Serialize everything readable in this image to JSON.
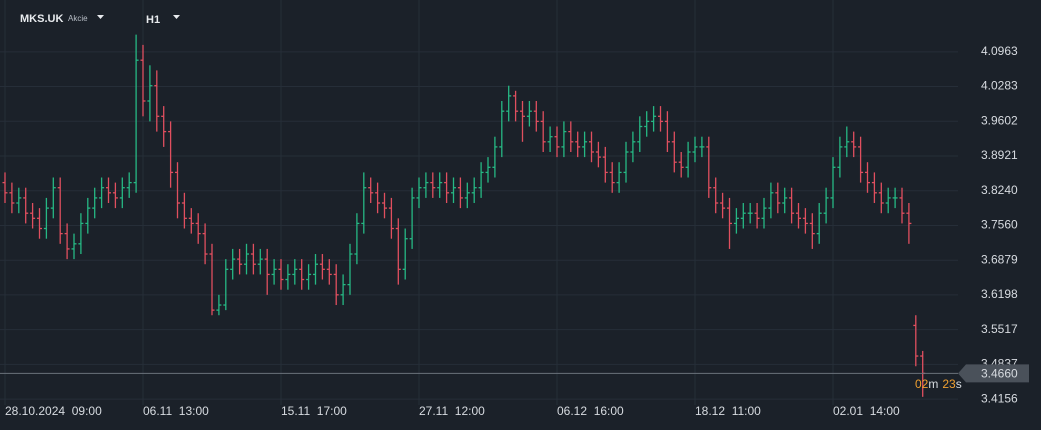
{
  "header": {
    "symbol": "MKS.UK",
    "asset_type": "Akcie",
    "timeframe": "H1"
  },
  "chart_data": {
    "type": "ohlc",
    "grid": true,
    "up_color": "#26b884",
    "down_color": "#e04f5f",
    "ylim": [
      3.404,
      4.198
    ],
    "yticks": [
      3.4156,
      3.4837,
      3.5517,
      3.6198,
      3.6879,
      {
        "value": 3.756,
        "label": "3.7560"
      },
      {
        "value": 3.824,
        "label": "3.8240"
      },
      3.8921,
      3.9602,
      4.0283,
      4.0963
    ],
    "categories": [
      "28.10.2024  09:00",
      null,
      null,
      null,
      null,
      null,
      null,
      null,
      null,
      null,
      null,
      null,
      null,
      null,
      null,
      null,
      null,
      null,
      null,
      null,
      "06.11  13:00",
      null,
      null,
      null,
      null,
      null,
      null,
      null,
      null,
      null,
      null,
      null,
      null,
      null,
      null,
      null,
      null,
      null,
      null,
      null,
      "15.11  17:00",
      null,
      null,
      null,
      null,
      null,
      null,
      null,
      null,
      null,
      null,
      null,
      null,
      null,
      null,
      null,
      null,
      null,
      null,
      null,
      "27.11  12:00",
      null,
      null,
      null,
      null,
      null,
      null,
      null,
      null,
      null,
      null,
      null,
      null,
      null,
      null,
      null,
      null,
      null,
      null,
      null,
      "06.12  16:00",
      null,
      null,
      null,
      null,
      null,
      null,
      null,
      null,
      null,
      null,
      null,
      null,
      null,
      null,
      null,
      null,
      null,
      null,
      null,
      "18.12  11:00",
      null,
      null,
      null,
      null,
      null,
      null,
      null,
      null,
      null,
      null,
      null,
      null,
      null,
      null,
      null,
      null,
      null,
      null,
      null,
      "02.01  14:00",
      null,
      null,
      null,
      null,
      null,
      null,
      null,
      null,
      null,
      null,
      null,
      null,
      null
    ],
    "open": [
      3.84,
      3.82,
      3.8,
      3.81,
      3.78,
      3.77,
      3.75,
      3.79,
      3.83,
      3.74,
      3.71,
      3.72,
      3.76,
      3.79,
      3.81,
      3.83,
      3.82,
      3.81,
      3.83,
      3.84,
      4.08,
      4.0,
      4.03,
      3.97,
      3.94,
      3.86,
      3.8,
      3.77,
      3.76,
      3.74,
      3.7,
      3.59,
      3.6,
      3.67,
      3.69,
      3.68,
      3.7,
      3.68,
      3.69,
      3.66,
      3.67,
      3.65,
      3.66,
      3.67,
      3.65,
      3.66,
      3.68,
      3.67,
      3.66,
      3.62,
      3.64,
      3.7,
      3.76,
      3.83,
      3.82,
      3.8,
      3.79,
      3.75,
      3.67,
      3.73,
      3.81,
      3.83,
      3.84,
      3.83,
      3.84,
      3.82,
      3.83,
      3.81,
      3.82,
      3.83,
      3.86,
      3.87,
      3.91,
      3.98,
      4.01,
      3.98,
      3.97,
      3.98,
      3.96,
      3.92,
      3.93,
      3.91,
      3.94,
      3.92,
      3.91,
      3.92,
      3.9,
      3.89,
      3.86,
      3.84,
      3.86,
      3.9,
      3.92,
      3.95,
      3.96,
      3.97,
      3.96,
      3.92,
      3.88,
      3.87,
      3.9,
      3.91,
      3.91,
      3.83,
      3.8,
      3.79,
      3.76,
      3.77,
      3.78,
      3.78,
      3.77,
      3.79,
      3.82,
      3.8,
      3.81,
      3.78,
      3.77,
      3.76,
      3.74,
      3.78,
      3.81,
      3.87,
      3.91,
      3.92,
      3.91,
      3.86,
      3.84,
      3.82,
      3.8,
      3.81,
      3.81,
      3.78,
      3.56,
      3.5
    ],
    "high": [
      3.86,
      3.84,
      3.83,
      3.83,
      3.8,
      3.79,
      3.81,
      3.85,
      3.85,
      3.76,
      3.74,
      3.78,
      3.81,
      3.83,
      3.85,
      3.85,
      3.84,
      3.85,
      3.86,
      4.13,
      4.11,
      4.07,
      4.06,
      3.99,
      3.96,
      3.88,
      3.82,
      3.79,
      3.78,
      3.76,
      3.72,
      3.62,
      3.69,
      3.71,
      3.71,
      3.72,
      3.72,
      3.71,
      3.71,
      3.69,
      3.69,
      3.68,
      3.69,
      3.69,
      3.68,
      3.7,
      3.7,
      3.69,
      3.68,
      3.66,
      3.72,
      3.78,
      3.86,
      3.85,
      3.84,
      3.82,
      3.81,
      3.77,
      3.75,
      3.83,
      3.85,
      3.86,
      3.86,
      3.86,
      3.86,
      3.85,
      3.85,
      3.84,
      3.85,
      3.88,
      3.89,
      3.93,
      4.0,
      4.03,
      4.02,
      4.0,
      4.0,
      4.0,
      3.98,
      3.95,
      3.95,
      3.96,
      3.96,
      3.94,
      3.94,
      3.94,
      3.92,
      3.91,
      3.88,
      3.88,
      3.92,
      3.94,
      3.97,
      3.98,
      3.99,
      3.99,
      3.98,
      3.94,
      3.9,
      3.92,
      3.93,
      3.93,
      3.93,
      3.85,
      3.82,
      3.81,
      3.79,
      3.8,
      3.8,
      3.8,
      3.81,
      3.84,
      3.84,
      3.83,
      3.83,
      3.8,
      3.79,
      3.78,
      3.8,
      3.83,
      3.89,
      3.93,
      3.95,
      3.94,
      3.93,
      3.88,
      3.86,
      3.84,
      3.83,
      3.83,
      3.83,
      3.8,
      3.58,
      3.51
    ],
    "low": [
      3.8,
      3.78,
      3.78,
      3.76,
      3.75,
      3.73,
      3.73,
      3.77,
      3.72,
      3.69,
      3.69,
      3.7,
      3.74,
      3.77,
      3.79,
      3.8,
      3.79,
      3.79,
      3.81,
      3.82,
      3.97,
      3.96,
      3.94,
      3.91,
      3.83,
      3.77,
      3.75,
      3.74,
      3.72,
      3.68,
      3.58,
      3.58,
      3.59,
      3.65,
      3.66,
      3.66,
      3.66,
      3.66,
      3.62,
      3.64,
      3.63,
      3.63,
      3.64,
      3.63,
      3.63,
      3.64,
      3.65,
      3.64,
      3.6,
      3.6,
      3.62,
      3.68,
      3.74,
      3.8,
      3.78,
      3.77,
      3.73,
      3.64,
      3.65,
      3.71,
      3.79,
      3.81,
      3.81,
      3.81,
      3.8,
      3.8,
      3.79,
      3.79,
      3.8,
      3.81,
      3.84,
      3.85,
      3.89,
      3.96,
      3.96,
      3.92,
      3.95,
      3.94,
      3.9,
      3.9,
      3.89,
      3.89,
      3.9,
      3.89,
      3.89,
      3.88,
      3.87,
      3.84,
      3.82,
      3.82,
      3.84,
      3.88,
      3.9,
      3.93,
      3.94,
      3.94,
      3.9,
      3.86,
      3.85,
      3.85,
      3.88,
      3.89,
      3.81,
      3.78,
      3.77,
      3.71,
      3.74,
      3.75,
      3.76,
      3.75,
      3.75,
      3.77,
      3.78,
      3.78,
      3.76,
      3.75,
      3.74,
      3.71,
      3.72,
      3.76,
      3.79,
      3.85,
      3.89,
      3.89,
      3.84,
      3.82,
      3.8,
      3.78,
      3.78,
      3.79,
      3.76,
      3.72,
      3.48,
      3.42
    ],
    "close": [
      3.82,
      3.8,
      3.81,
      3.78,
      3.77,
      3.75,
      3.79,
      3.83,
      3.74,
      3.71,
      3.72,
      3.76,
      3.79,
      3.81,
      3.83,
      3.82,
      3.81,
      3.83,
      3.84,
      4.08,
      4.0,
      4.03,
      3.97,
      3.94,
      3.86,
      3.8,
      3.77,
      3.76,
      3.74,
      3.7,
      3.59,
      3.6,
      3.67,
      3.69,
      3.68,
      3.7,
      3.68,
      3.69,
      3.66,
      3.67,
      3.65,
      3.66,
      3.67,
      3.65,
      3.66,
      3.68,
      3.67,
      3.66,
      3.62,
      3.64,
      3.7,
      3.76,
      3.83,
      3.82,
      3.8,
      3.79,
      3.75,
      3.67,
      3.73,
      3.81,
      3.83,
      3.84,
      3.83,
      3.84,
      3.82,
      3.83,
      3.81,
      3.82,
      3.83,
      3.86,
      3.87,
      3.91,
      3.98,
      4.01,
      3.98,
      3.97,
      3.98,
      3.96,
      3.92,
      3.93,
      3.91,
      3.94,
      3.92,
      3.91,
      3.92,
      3.9,
      3.89,
      3.86,
      3.84,
      3.86,
      3.9,
      3.92,
      3.95,
      3.96,
      3.97,
      3.96,
      3.92,
      3.88,
      3.87,
      3.9,
      3.91,
      3.91,
      3.83,
      3.8,
      3.79,
      3.76,
      3.77,
      3.78,
      3.78,
      3.77,
      3.79,
      3.82,
      3.8,
      3.81,
      3.78,
      3.77,
      3.76,
      3.74,
      3.78,
      3.81,
      3.87,
      3.91,
      3.92,
      3.91,
      3.86,
      3.84,
      3.82,
      3.8,
      3.81,
      3.81,
      3.78,
      3.76,
      3.5,
      3.466
    ],
    "last_price": {
      "value": 3.466,
      "label": "3.4660"
    },
    "countdown": [
      "02",
      "m",
      "23",
      "s"
    ]
  }
}
